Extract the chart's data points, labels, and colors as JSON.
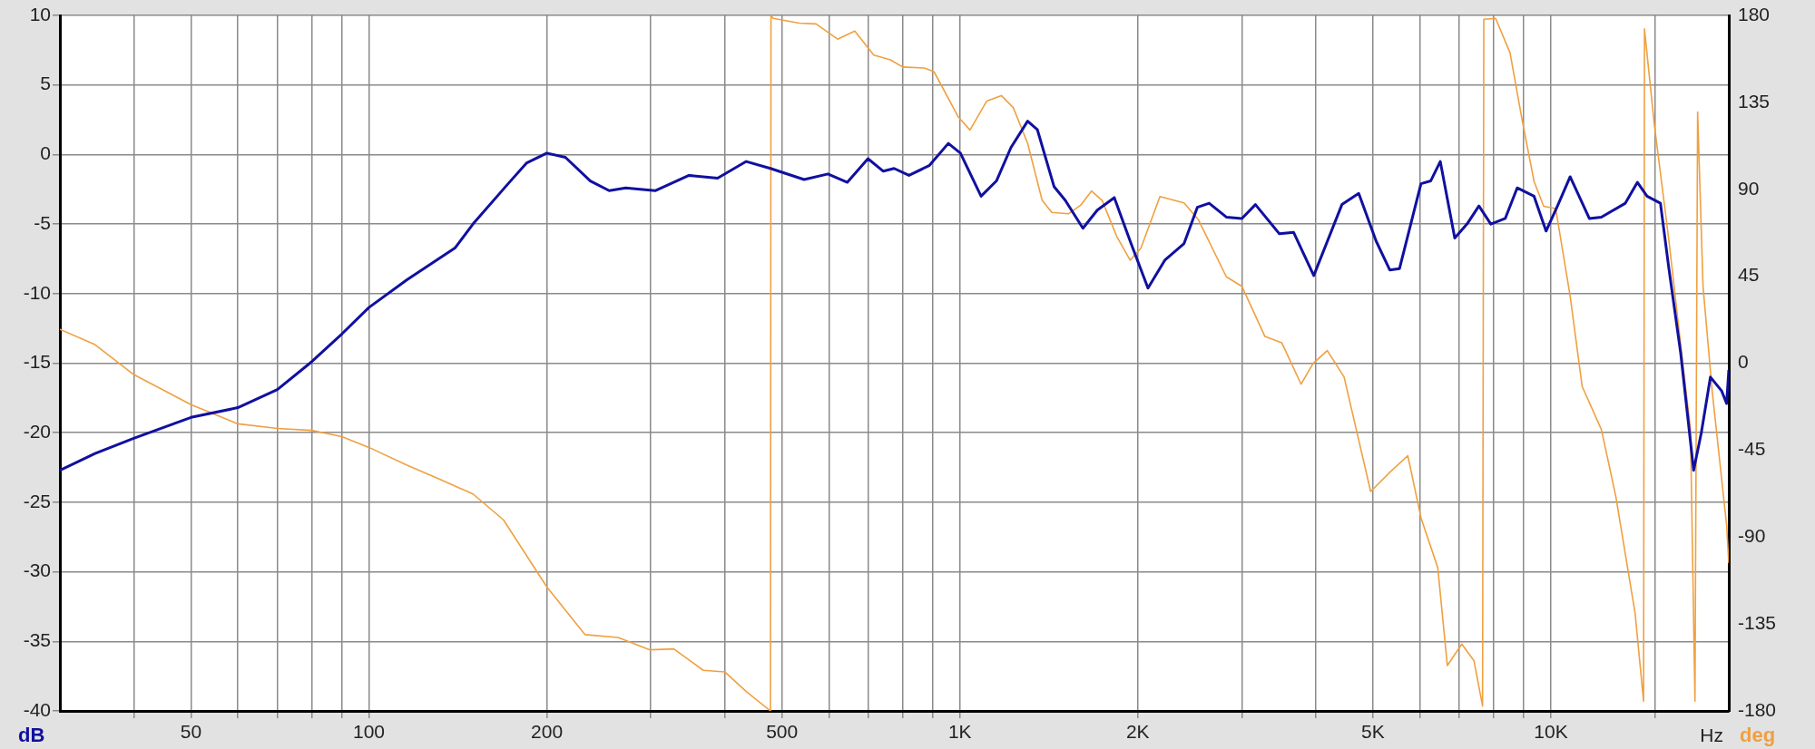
{
  "chart_data": {
    "type": "line",
    "xlabel": "Hz",
    "ylabel": "dB",
    "y2label": "deg",
    "log": "x",
    "grid": true,
    "marker": "none",
    "line_style": "solid",
    "xlim": [
      30,
      20000
    ],
    "xticks": [
      {
        "value": 40,
        "label": null
      },
      50,
      {
        "value": 60,
        "label": null
      },
      {
        "value": 70,
        "label": null
      },
      {
        "value": 80,
        "label": null
      },
      {
        "value": 90,
        "label": null
      },
      100,
      200,
      {
        "value": 300,
        "label": null
      },
      {
        "value": 400,
        "label": null
      },
      500,
      {
        "value": 600,
        "label": null
      },
      {
        "value": 700,
        "label": null
      },
      {
        "value": 800,
        "label": null
      },
      {
        "value": 900,
        "label": null
      },
      {
        "value": 1000,
        "label": "1K"
      },
      {
        "value": 2000,
        "label": "2K"
      },
      {
        "value": 3000,
        "label": null
      },
      {
        "value": 4000,
        "label": null
      },
      {
        "value": 5000,
        "label": "5K"
      },
      {
        "value": 6000,
        "label": null
      },
      {
        "value": 7000,
        "label": null
      },
      {
        "value": 8000,
        "label": null
      },
      {
        "value": 9000,
        "label": null
      },
      {
        "value": 10000,
        "label": "10K"
      },
      {
        "value": 15000,
        "label": null
      }
    ],
    "ylim": [
      -40,
      10
    ],
    "yticks": [
      -40,
      -35,
      -30,
      -25,
      -20,
      -15,
      -10,
      -5,
      0,
      5,
      10
    ],
    "y2lim": [
      -180,
      180
    ],
    "y2ticks": [
      -180,
      -135,
      -90,
      -45,
      0,
      45,
      90,
      135,
      180
    ],
    "series": [
      {
        "color": "#1010a0",
        "x": [
          30,
          34.4,
          40,
          50,
          60,
          70,
          80,
          90,
          100,
          116,
          140,
          150,
          172,
          185,
          200,
          215,
          237,
          255,
          272,
          305,
          348,
          389,
          435,
          478,
          545,
          598,
          645,
          699,
          742,
          774,
          820,
          887,
          956,
          1002,
          1086,
          1153,
          1220,
          1302,
          1352,
          1443,
          1508,
          1615,
          1708,
          1825,
          1948,
          2081,
          2222,
          2395,
          2522,
          2641,
          2824,
          3000,
          3163,
          3472,
          3671,
          3970,
          4430,
          4730,
          5059,
          5338,
          5545,
          6028,
          6260,
          6499,
          6876,
          7212,
          7555,
          7914,
          8370,
          8770,
          9365,
          9814,
          10285,
          10779,
          11616,
          12173,
          13367,
          14010,
          14546,
          15324,
          15825,
          16585,
          17440,
          17970,
          18620,
          19454,
          19830,
          20000
        ],
        "values": [
          -22.7,
          -21.5,
          -20.4,
          -18.9,
          -18.2,
          -16.9,
          -14.9,
          -12.9,
          -11.0,
          -9.0,
          -6.7,
          -5.0,
          -2.1,
          -0.6,
          0.1,
          -0.2,
          -1.9,
          -2.6,
          -2.4,
          -2.6,
          -1.5,
          -1.7,
          -0.5,
          -1.0,
          -1.8,
          -1.4,
          -2.0,
          -0.3,
          -1.2,
          -1.0,
          -1.5,
          -0.8,
          0.8,
          0.1,
          -3.0,
          -1.9,
          0.5,
          2.4,
          1.8,
          -2.3,
          -3.3,
          -5.3,
          -4.0,
          -3.1,
          -6.4,
          -9.6,
          -7.6,
          -6.4,
          -3.8,
          -3.5,
          -4.5,
          -4.6,
          -3.6,
          -5.7,
          -5.6,
          -8.7,
          -3.6,
          -2.8,
          -6.2,
          -8.3,
          -8.2,
          -2.1,
          -1.9,
          -0.5,
          -6.0,
          -5.0,
          -3.7,
          -5.0,
          -4.6,
          -2.4,
          -3.0,
          -5.5,
          -3.6,
          -1.6,
          -4.6,
          -4.5,
          -3.5,
          -2.0,
          -3.0,
          -3.5,
          -8.1,
          -14.3,
          -22.7,
          -20.0,
          -16.0,
          -17.0,
          -17.9,
          -15.5
        ]
      },
      {
        "color": "#f0a040",
        "axis": "y2",
        "x": [
          30,
          34.4,
          40,
          50,
          60,
          70,
          80,
          90,
          100,
          116,
          132,
          150,
          169,
          200,
          232,
          264,
          299,
          328,
          368,
          400,
          435,
          478,
          479,
          483,
          535,
          571,
          621,
          664,
          715,
          763,
          800,
          870,
          904,
          994,
          1040,
          1110,
          1175,
          1231,
          1302,
          1378,
          1431,
          1526,
          1600,
          1670,
          1741,
          1842,
          1941,
          2024,
          2180,
          2395,
          2532,
          2824,
          3000,
          3282,
          3504,
          3779,
          3959,
          4185,
          4467,
          4955,
          5338,
          5727,
          6028,
          6436,
          6680,
          7067,
          7412,
          7663,
          7700,
          8062,
          8528,
          8936,
          9365,
          9723,
          10189,
          10779,
          11297,
          12173,
          12878,
          13883,
          14350,
          14400,
          14960,
          15825,
          16750,
          17226,
          17531,
          17713,
          18090,
          18749,
          19830,
          20000
        ],
        "values": [
          17.5,
          9.6,
          -5.9,
          -21.5,
          -31.4,
          -33.8,
          -34.8,
          -38.0,
          -43.6,
          -52.8,
          -60.2,
          -67.7,
          -81.2,
          -115.8,
          -140.5,
          -142,
          -148.4,
          -147.9,
          -159,
          -159.8,
          -170,
          -180,
          180,
          178.5,
          176,
          175.6,
          167.7,
          171.9,
          159.5,
          157,
          153.3,
          152.8,
          150.9,
          127.4,
          120.7,
          135.6,
          138.5,
          132.3,
          113.8,
          84.2,
          78,
          77.3,
          81.7,
          89.1,
          84.2,
          65.7,
          53.3,
          59.5,
          86.2,
          83,
          74.3,
          44.7,
          39.8,
          13.8,
          10.6,
          -10.9,
          -0.2,
          6.5,
          -7.1,
          -66.4,
          -56.5,
          -47.9,
          -80,
          -105.9,
          -156.5,
          -145.4,
          -154.1,
          -177.5,
          178,
          178.5,
          160.7,
          126.2,
          94.1,
          81.2,
          80,
          34.8,
          -12.1,
          -34.3,
          -68.9,
          -129.4,
          -175,
          173,
          123.7,
          64.4,
          -2.2,
          -34.3,
          -175,
          130,
          39.8,
          -14.6,
          -83.7,
          -103.5
        ]
      }
    ]
  }
}
